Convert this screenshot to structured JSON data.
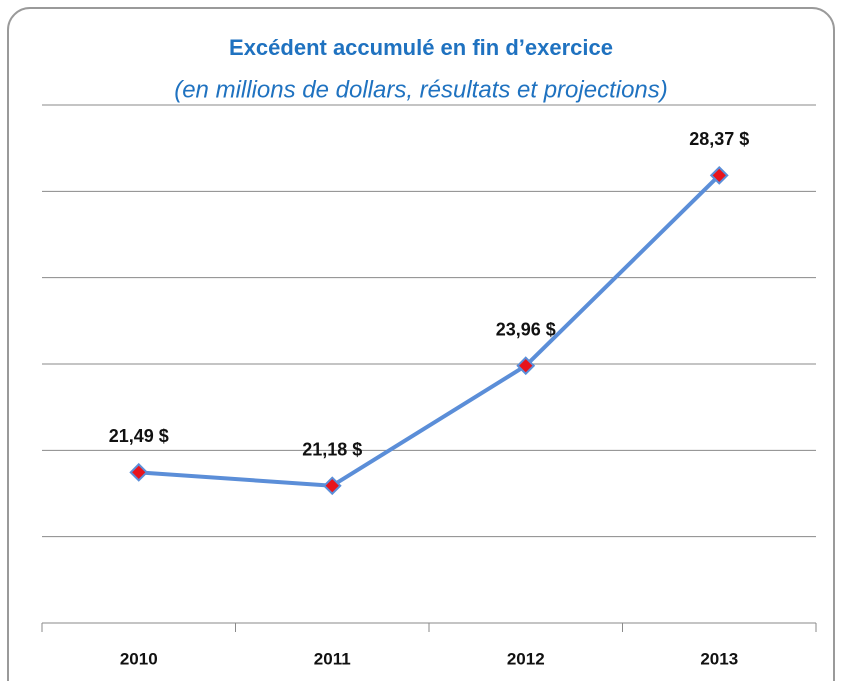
{
  "chart_data": {
    "type": "line",
    "title": "Excédent accumulé en fin d’exercice",
    "subtitle": "(en millions de dollars, résultats et projections)",
    "categories": [
      "2010",
      "2011",
      "2012",
      "2013"
    ],
    "series": [
      {
        "name": "Excédent accumulé",
        "color": "#5b8ed8",
        "marker_color": "#e8141c",
        "values": [
          21.49,
          21.18,
          23.96,
          28.37
        ],
        "value_labels": [
          "21,49 $",
          "21,18 $",
          "23,96 $",
          "28,37 $"
        ]
      }
    ],
    "ylim": [
      18,
      30
    ],
    "yticks": [
      18,
      20,
      22,
      24,
      26,
      28,
      30
    ],
    "grid": true
  }
}
